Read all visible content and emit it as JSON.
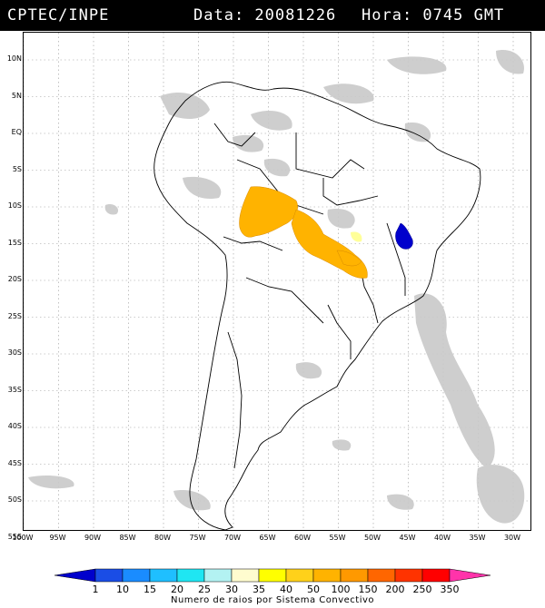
{
  "header": {
    "source": "CPTEC/INPE",
    "date_label": "Data: 20081226",
    "time_label": "Hora: 0745 GMT"
  },
  "map": {
    "lat_labels": [
      "10N",
      "5N",
      "EQ",
      "5S",
      "10S",
      "15S",
      "20S",
      "25S",
      "30S",
      "35S",
      "40S",
      "45S",
      "50S",
      "55S"
    ],
    "lon_labels": [
      "100W",
      "95W",
      "90W",
      "85W",
      "80W",
      "75W",
      "70W",
      "65W",
      "60W",
      "55W",
      "50W",
      "45W",
      "40W",
      "35W",
      "30W"
    ],
    "gridlines": true
  },
  "colorbar": {
    "title": "Numero de raios por Sistema Convectivo",
    "labels": [
      "1",
      "10",
      "15",
      "20",
      "25",
      "30",
      "35",
      "40",
      "50",
      "100",
      "150",
      "200",
      "250",
      "350"
    ],
    "colors": [
      "#0000cc",
      "#1a4de6",
      "#1a8cff",
      "#1fbfff",
      "#1fe6f2",
      "#b3f2f2",
      "#fffccf",
      "#ffff00",
      "#ffd11a",
      "#ffb300",
      "#ff9900",
      "#ff6600",
      "#ff3300",
      "#ff0000",
      "#ff33aa"
    ]
  }
}
